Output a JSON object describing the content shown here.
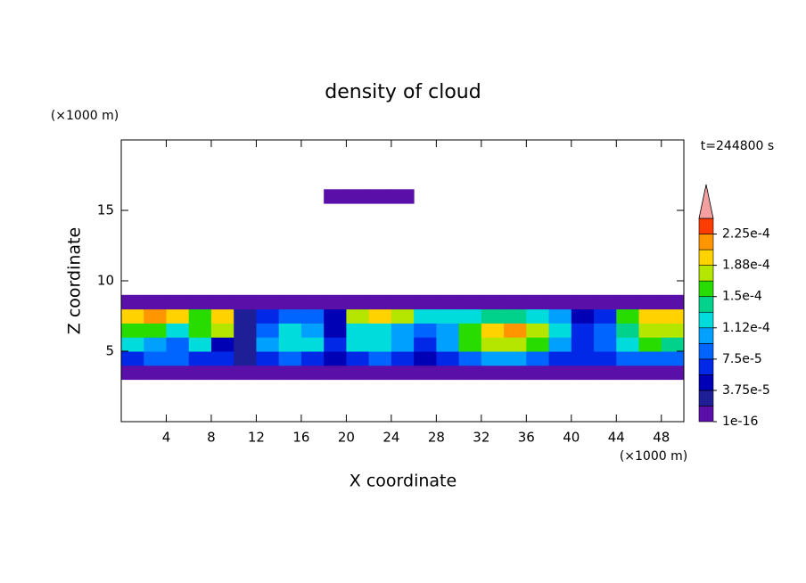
{
  "chart_data": {
    "type": "contour",
    "title": "density of cloud",
    "xlabel": "X coordinate",
    "ylabel": "Z coordinate",
    "x_unit": "(×1000 m)",
    "y_unit": "(×1000 m)",
    "time_label": "t=244800 s",
    "xlim": [
      0,
      50
    ],
    "ylim": [
      0,
      20
    ],
    "xticks": [
      4,
      8,
      12,
      16,
      20,
      24,
      28,
      32,
      36,
      40,
      44,
      48
    ],
    "yticks": [
      5,
      10,
      15
    ],
    "field": {
      "x": [
        1,
        3,
        5,
        7,
        9,
        11,
        13,
        15,
        17,
        19,
        21,
        23,
        25,
        27,
        29,
        31,
        33,
        35,
        37,
        39,
        41,
        43,
        45,
        47,
        49
      ],
      "z": [
        3.5,
        4.5,
        5.5,
        6.5,
        7.5,
        8.5,
        16
      ],
      "values": [
        [
          5e-06,
          5e-06,
          5e-06,
          5e-06,
          5e-06,
          5e-06,
          5e-06,
          5e-06,
          5e-06,
          5e-06,
          5e-06,
          5e-06,
          5e-06,
          5e-06,
          5e-06,
          5e-06,
          5e-06,
          5e-06,
          5e-06,
          5e-06,
          5e-06,
          5e-06,
          5e-06,
          5e-06,
          5e-06
        ],
        [
          6e-05,
          8e-05,
          9e-05,
          7e-05,
          6e-05,
          3e-05,
          7e-05,
          8e-05,
          6e-05,
          4e-05,
          7e-05,
          9e-05,
          6e-05,
          4e-05,
          6e-05,
          9e-05,
          0.0001,
          0.0001,
          9e-05,
          7e-05,
          6e-05,
          7e-05,
          8e-05,
          9e-05,
          8e-05
        ],
        [
          0.00012,
          0.00011,
          9e-05,
          0.00013,
          5e-05,
          2e-05,
          0.0001,
          0.00013,
          0.00012,
          6e-05,
          0.00013,
          0.00012,
          0.0001,
          6e-05,
          0.00011,
          0.00015,
          0.00017,
          0.00017,
          0.00015,
          0.00011,
          6e-05,
          8e-05,
          0.00012,
          0.00015,
          0.00014
        ],
        [
          0.00016,
          0.00015,
          0.00013,
          0.00016,
          0.00017,
          3e-05,
          8e-05,
          0.00012,
          0.00011,
          5e-05,
          0.00012,
          0.00013,
          0.00011,
          8e-05,
          0.0001,
          0.00016,
          0.0002,
          0.00021,
          0.00018,
          0.00013,
          7e-05,
          9e-05,
          0.00014,
          0.00018,
          0.00017
        ],
        [
          0.0002,
          0.00021,
          0.0002,
          0.00015,
          0.00019,
          3e-05,
          6e-05,
          9e-05,
          8e-05,
          5e-05,
          0.00018,
          0.00019,
          0.00017,
          0.00013,
          0.00012,
          0.00013,
          0.00014,
          0.00014,
          0.00012,
          0.0001,
          5e-05,
          6e-05,
          0.00016,
          0.0002,
          0.0002
        ],
        [
          5e-06,
          5e-06,
          5e-06,
          5e-06,
          5e-06,
          5e-06,
          5e-06,
          5e-06,
          5e-06,
          5e-06,
          5e-06,
          5e-06,
          5e-06,
          5e-06,
          5e-06,
          5e-06,
          5e-06,
          5e-06,
          5e-06,
          5e-06,
          5e-06,
          5e-06,
          5e-06,
          5e-06,
          5e-06
        ],
        [
          null,
          null,
          null,
          null,
          null,
          null,
          null,
          null,
          null,
          5e-06,
          5e-06,
          5e-06,
          5e-06,
          null,
          null,
          null,
          null,
          null,
          null,
          null,
          null,
          null,
          null,
          null,
          null
        ]
      ]
    },
    "colorbar": {
      "levels": [
        1e-16,
        1.875e-05,
        3.75e-05,
        5.625e-05,
        7.5e-05,
        9.375e-05,
        0.0001125,
        0.00013125,
        0.00015,
        0.00016875,
        0.0001875,
        0.00020625,
        0.000225,
        0.00024375
      ],
      "colors": [
        "#5a10a8",
        "#1e1e96",
        "#0000b4",
        "#0028e6",
        "#0064ff",
        "#00a0ff",
        "#00dcdc",
        "#00d28c",
        "#28dc00",
        "#b4e600",
        "#ffd200",
        "#ff9600",
        "#ff3c00"
      ],
      "over_color": "#f4a0a0",
      "ticks": [
        {
          "value": 1e-16,
          "label": "1e-16"
        },
        {
          "value": 3.75e-05,
          "label": "3.75e-5"
        },
        {
          "value": 7.5e-05,
          "label": "7.5e-5"
        },
        {
          "value": 0.0001125,
          "label": "1.12e-4"
        },
        {
          "value": 0.00015,
          "label": "1.5e-4"
        },
        {
          "value": 0.0001875,
          "label": "1.88e-4"
        },
        {
          "value": 0.000225,
          "label": "2.25e-4"
        }
      ]
    }
  }
}
